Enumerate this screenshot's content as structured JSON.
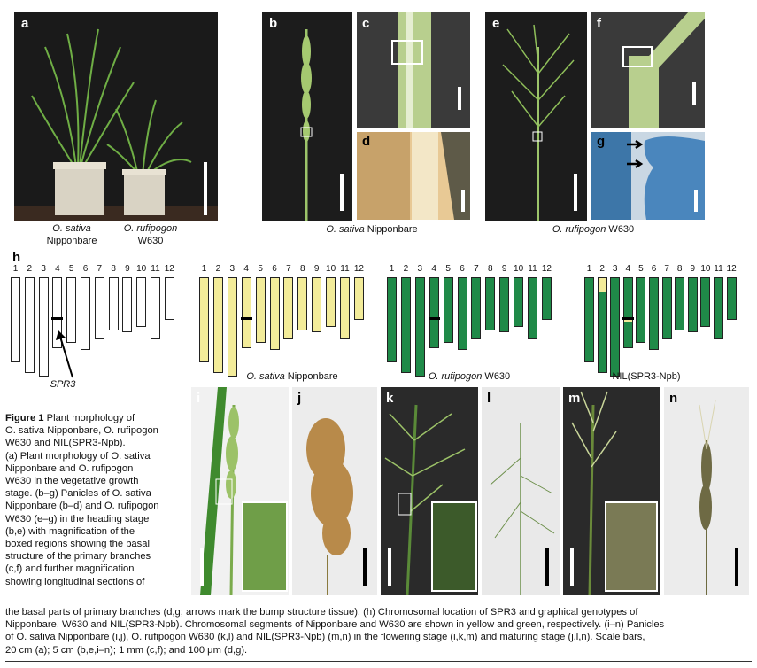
{
  "panels": {
    "a": {
      "label": "a",
      "caption_line1": "O. sativa",
      "caption_line2": "Nipponbare",
      "caption2_line1": "O. rufipogon",
      "caption2_line2": "W630"
    },
    "b": {
      "label": "b"
    },
    "c": {
      "label": "c"
    },
    "d": {
      "label": "d"
    },
    "e": {
      "label": "e"
    },
    "f": {
      "label": "f"
    },
    "g": {
      "label": "g"
    },
    "bd_caption_italic": "O. sativa",
    "bd_caption_rest": " Nipponbare",
    "eg_caption_italic": "O. rufipogon",
    "eg_caption_rest": " W630",
    "h": {
      "label": "h"
    },
    "i": {
      "label": "i"
    },
    "j": {
      "label": "j"
    },
    "k": {
      "label": "k"
    },
    "l": {
      "label": "l"
    },
    "m": {
      "label": "m"
    },
    "n": {
      "label": "n"
    }
  },
  "genotypes": {
    "chromosome_numbers": [
      "1",
      "2",
      "3",
      "4",
      "5",
      "6",
      "7",
      "8",
      "9",
      "10",
      "11",
      "12"
    ],
    "gene_label": "SPR3",
    "set_labels": {
      "nipponbare_italic": "O. sativa",
      "nipponbare_rest": " Nipponbare",
      "w630_italic": "O. rufipogon",
      "w630_rest": " W630",
      "nil": "NIL(SPR3-Npb)"
    },
    "colors": {
      "nipponbare": "#f3ec9a",
      "w630": "#1f8a48",
      "outline": "#ffffff"
    }
  },
  "caption": {
    "title": "Figure 1",
    "lines": [
      "Plant morphology of",
      "O. sativa Nipponbare, O. rufipogon",
      "W630 and NIL(SPR3-Npb).",
      "(a) Plant morphology of O. sativa",
      "Nipponbare and O. rufipogon",
      "W630 in the vegetative growth",
      "stage. (b–g) Panicles of O. sativa",
      "Nipponbare (b–d) and O. rufipogon",
      "W630 (e–g) in the heading stage",
      "(b,e) with magnification of the",
      "boxed regions showing the basal",
      "structure of the primary branches",
      "(c,f) and further magnification",
      "showing longitudinal sections of"
    ],
    "full_lines": [
      "the basal parts of primary branches (d,g; arrows mark the bump structure tissue). (h) Chromosomal location of SPR3 and graphical genotypes of",
      "Nipponbare, W630 and NIL(SPR3-Npb). Chromosomal segments of Nipponbare and W630 are shown in yellow and green, respectively. (i–n) Panicles",
      "of O. sativa Nipponbare (i,j), O. rufipogon W630 (k,l) and NIL(SPR3-Npb) (m,n) in the flowering stage (i,k,m) and maturing stage (j,l,n). Scale bars,",
      "20 cm (a); 5 cm (b,e,i–n); 1 mm (c,f); and 100 μm (d,g)."
    ]
  }
}
